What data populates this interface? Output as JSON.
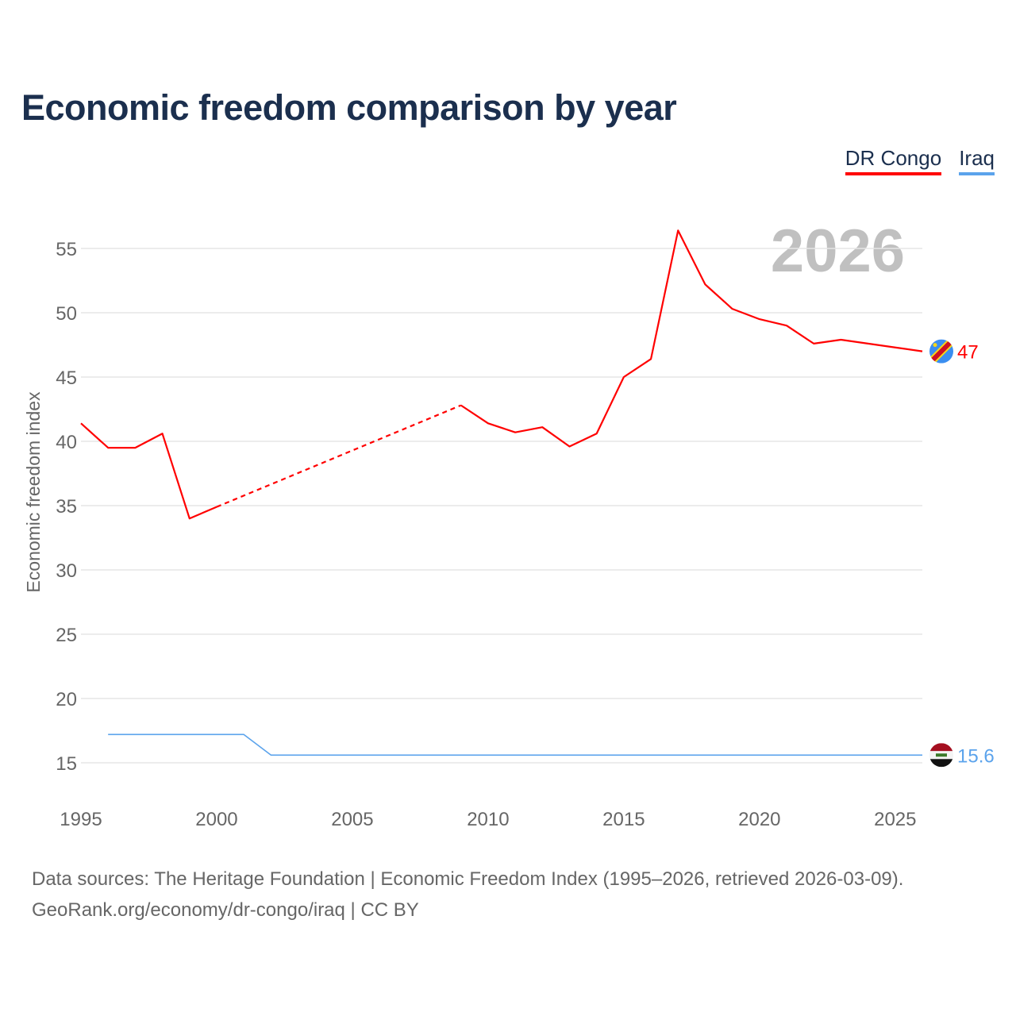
{
  "title": "Economic freedom comparison by year",
  "footer": {
    "line1": "Data sources: The Heritage Foundation | Economic Freedom Index (1995–2026, retrieved 2026-03-09).",
    "line2": "GeoRank.org/economy/dr-congo/iraq | CC BY"
  },
  "chart_data": {
    "type": "line",
    "title": "Economic freedom comparison by year",
    "xlabel": "",
    "ylabel": "Economic freedom index",
    "xlim": [
      1995,
      2026
    ],
    "ylim": [
      15,
      55
    ],
    "x_ticks": [
      "1995",
      "2000",
      "2005",
      "2010",
      "2015",
      "2020",
      "2025"
    ],
    "y_ticks": [
      "15",
      "20",
      "25",
      "30",
      "35",
      "40",
      "45",
      "50",
      "55"
    ],
    "grid": true,
    "legend_position": "top-right",
    "year_watermark": "2026",
    "x": [
      1995,
      1996,
      1997,
      1998,
      1999,
      2000,
      2001,
      2002,
      2003,
      2004,
      2005,
      2006,
      2007,
      2008,
      2009,
      2010,
      2011,
      2012,
      2013,
      2014,
      2015,
      2016,
      2017,
      2018,
      2019,
      2020,
      2021,
      2022,
      2023,
      2024,
      2025,
      2026
    ],
    "series": [
      {
        "name": "DR Congo",
        "color": "#ff0000",
        "end_label": "47",
        "values": [
          41.4,
          39.5,
          39.5,
          40.6,
          34.0,
          34.9,
          null,
          null,
          null,
          null,
          null,
          null,
          null,
          null,
          42.8,
          41.4,
          40.7,
          41.1,
          39.6,
          40.6,
          45.0,
          46.4,
          56.4,
          52.2,
          50.3,
          49.5,
          49.0,
          47.6,
          47.9,
          47.6,
          47.3,
          47.0
        ]
      },
      {
        "name": "Iraq",
        "color": "#5ba3ec",
        "end_label": "15.6",
        "values": [
          null,
          17.2,
          17.2,
          17.2,
          17.2,
          17.2,
          17.2,
          15.6,
          15.6,
          15.6,
          15.6,
          15.6,
          15.6,
          15.6,
          15.6,
          15.6,
          15.6,
          15.6,
          15.6,
          15.6,
          15.6,
          15.6,
          15.6,
          15.6,
          15.6,
          15.6,
          15.6,
          15.6,
          15.6,
          15.6,
          15.6,
          15.6
        ]
      }
    ]
  }
}
